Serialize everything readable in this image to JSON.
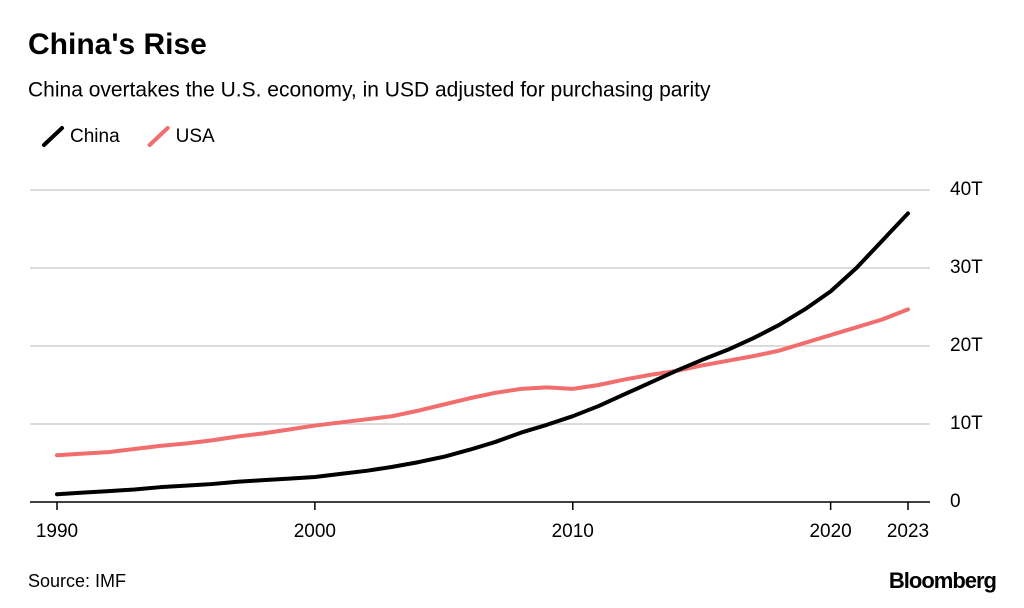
{
  "chart_data": {
    "type": "line",
    "title": "China's Rise",
    "subtitle": "China overtakes the U.S. economy, in USD adjusted for purchasing parity",
    "x": [
      1990,
      1991,
      1992,
      1993,
      1994,
      1995,
      1996,
      1997,
      1998,
      1999,
      2000,
      2001,
      2002,
      2003,
      2004,
      2005,
      2006,
      2007,
      2008,
      2009,
      2010,
      2011,
      2012,
      2013,
      2014,
      2015,
      2016,
      2017,
      2018,
      2019,
      2020,
      2021,
      2022,
      2023
    ],
    "series": [
      {
        "name": "China",
        "color": "#000000",
        "values": [
          1.0,
          1.2,
          1.4,
          1.6,
          1.9,
          2.1,
          2.3,
          2.6,
          2.8,
          3.0,
          3.2,
          3.6,
          4.0,
          4.5,
          5.1,
          5.8,
          6.7,
          7.7,
          8.9,
          9.9,
          11.0,
          12.3,
          13.8,
          15.3,
          16.8,
          18.2,
          19.5,
          21.0,
          22.7,
          24.7,
          27.0,
          30.0,
          33.5,
          37.0
        ]
      },
      {
        "name": "USA",
        "color": "#f26d6d",
        "values": [
          6.0,
          6.2,
          6.4,
          6.8,
          7.2,
          7.5,
          7.9,
          8.4,
          8.8,
          9.3,
          9.8,
          10.2,
          10.6,
          11.0,
          11.7,
          12.5,
          13.3,
          14.0,
          14.5,
          14.7,
          14.5,
          15.0,
          15.7,
          16.3,
          16.8,
          17.5,
          18.1,
          18.7,
          19.4,
          20.4,
          21.4,
          22.4,
          23.4,
          24.7
        ]
      }
    ],
    "xlim": [
      1990,
      2023
    ],
    "xticks": [
      1990,
      2000,
      2010,
      2020,
      2023
    ],
    "ylim": [
      0,
      40
    ],
    "yticks": [
      0,
      {
        "value": 10,
        "label": "10T"
      },
      {
        "value": 20,
        "label": "20T"
      },
      {
        "value": 30,
        "label": "30T"
      },
      {
        "value": 40,
        "label": "40T"
      }
    ],
    "grid": true,
    "source": "Source: IMF",
    "brand": "Bloomberg"
  }
}
